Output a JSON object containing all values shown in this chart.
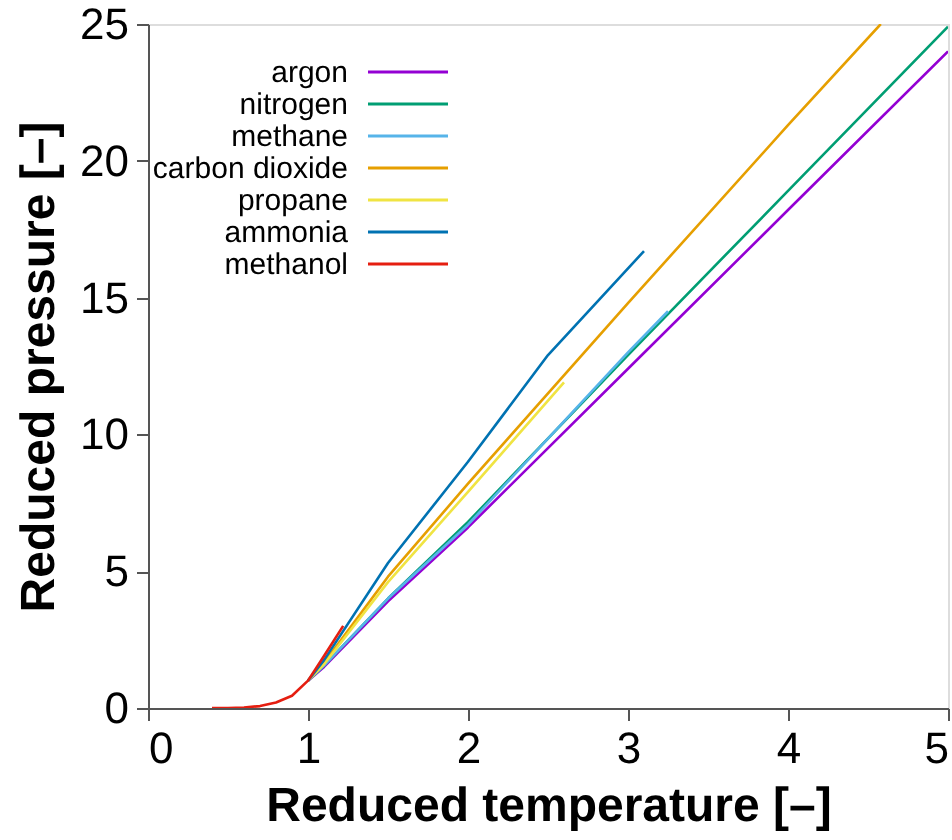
{
  "chart_data": {
    "type": "line",
    "xlabel": "Reduced temperature [–]",
    "ylabel": "Reduced pressure [–]",
    "xlim": [
      0,
      5
    ],
    "ylim": [
      0,
      25
    ],
    "xticks": [
      0,
      1,
      2,
      3,
      4,
      5
    ],
    "yticks": [
      0,
      5,
      10,
      15,
      20,
      25
    ],
    "grid": false,
    "legend": "top left",
    "line_style": "solid",
    "marker": "none",
    "series": [
      {
        "name": "argon",
        "color": "#9400d3",
        "x": [
          1.0,
          1.1,
          1.5,
          2,
          3,
          4,
          5
        ],
        "values": [
          1.0,
          1.5,
          3.9,
          6.6,
          12.4,
          18.2,
          24.0
        ]
      },
      {
        "name": "nitrogen",
        "color": "#009e73",
        "x": [
          1.0,
          1.1,
          1.5,
          2,
          3,
          4,
          5
        ],
        "values": [
          1.0,
          1.55,
          4.0,
          6.8,
          12.9,
          18.9,
          24.9
        ]
      },
      {
        "name": "methane",
        "color": "#56b4e9",
        "x": [
          1.0,
          1.1,
          1.5,
          2,
          3,
          3.25
        ],
        "values": [
          1.0,
          1.55,
          4.0,
          6.7,
          13.0,
          14.5
        ]
      },
      {
        "name": "carbon dioxide",
        "color": "#e69f00",
        "x": [
          1.0,
          1.1,
          1.5,
          2,
          3,
          4,
          4.58
        ],
        "values": [
          1.0,
          1.65,
          4.8,
          8.2,
          14.8,
          21.3,
          25
        ]
      },
      {
        "name": "propane",
        "color": "#f0e442",
        "x": [
          1.0,
          1.1,
          1.5,
          2,
          2.6
        ],
        "values": [
          1.0,
          1.6,
          4.6,
          7.9,
          11.9
        ]
      },
      {
        "name": "ammonia",
        "color": "#0072b2",
        "x": [
          1.0,
          1.1,
          1.5,
          2,
          2.5,
          3.1
        ],
        "values": [
          1.0,
          1.75,
          5.3,
          9.0,
          12.9,
          16.7
        ]
      },
      {
        "name": "methanol",
        "color": "#e51e10",
        "x": [
          0.4,
          0.5,
          0.6,
          0.7,
          0.8,
          0.9,
          1.0,
          1.1,
          1.22
        ],
        "values": [
          0.0,
          0.0,
          0.02,
          0.07,
          0.2,
          0.45,
          1.0,
          1.9,
          3.0
        ]
      }
    ]
  }
}
